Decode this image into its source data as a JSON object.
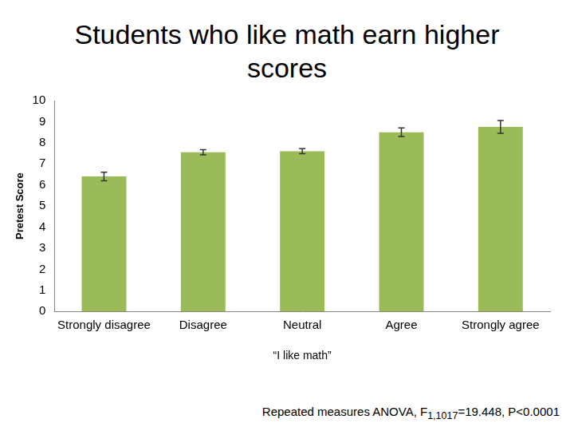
{
  "chart_data": {
    "type": "bar",
    "title": "Students who like math earn higher scores",
    "x_label": "“I like math”",
    "y_label": "Pretest Score",
    "categories": [
      "Strongly disagree",
      "Disagree",
      "Neutral",
      "Agree",
      "Strongly agree"
    ],
    "values": [
      6.4,
      7.55,
      7.6,
      8.5,
      8.75
    ],
    "error": [
      0.2,
      0.12,
      0.12,
      0.2,
      0.3
    ],
    "color": "#9bbb59",
    "ylim": [
      0,
      10
    ],
    "yticks": [
      0,
      1,
      2,
      3,
      4,
      5,
      6,
      7,
      8,
      9,
      10
    ],
    "grid": false,
    "annotation": {
      "text": "Repeated measures ANOVA, F",
      "subscript": "1,1017",
      "text_after": "=19.448, P<0.0001"
    }
  }
}
